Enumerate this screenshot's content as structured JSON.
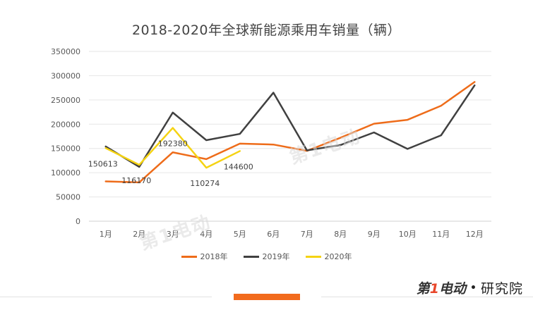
{
  "chart_data": {
    "type": "line",
    "title": "2018-2020年全球新能源乘用车销量（辆）",
    "categories": [
      "1月",
      "2月",
      "3月",
      "4月",
      "5月",
      "6月",
      "7月",
      "8月",
      "9月",
      "10月",
      "11月",
      "12月"
    ],
    "ylim": [
      0,
      350000
    ],
    "yticks": [
      "0",
      "50000",
      "100000",
      "150000",
      "200000",
      "250000",
      "300000",
      "350000"
    ],
    "ytick_values": [
      0,
      50000,
      100000,
      150000,
      200000,
      250000,
      300000,
      350000
    ],
    "grid": true,
    "legend_position": "bottom",
    "series": [
      {
        "name": "2018年",
        "color": "#ee6c1a",
        "values": [
          82000,
          80000,
          142000,
          128000,
          160000,
          158000,
          145000,
          172000,
          201000,
          209000,
          238000,
          287000
        ]
      },
      {
        "name": "2019年",
        "color": "#404040",
        "values": [
          154000,
          112000,
          224000,
          167000,
          180000,
          265000,
          146000,
          157000,
          183000,
          149000,
          177000,
          280000
        ]
      },
      {
        "name": "2020年",
        "color": "#f5d313",
        "values": [
          150613,
          116170,
          192380,
          110274,
          144600,
          null,
          null,
          null,
          null,
          null,
          null,
          null
        ],
        "labels": [
          "150613",
          "116170",
          "192380",
          "110274",
          "144600"
        ]
      }
    ]
  },
  "watermark": "第1电动",
  "brand": {
    "logo_prefix": "第",
    "logo_one": "1",
    "logo_suffix": "电动",
    "dot": "•",
    "name": "研究院"
  }
}
